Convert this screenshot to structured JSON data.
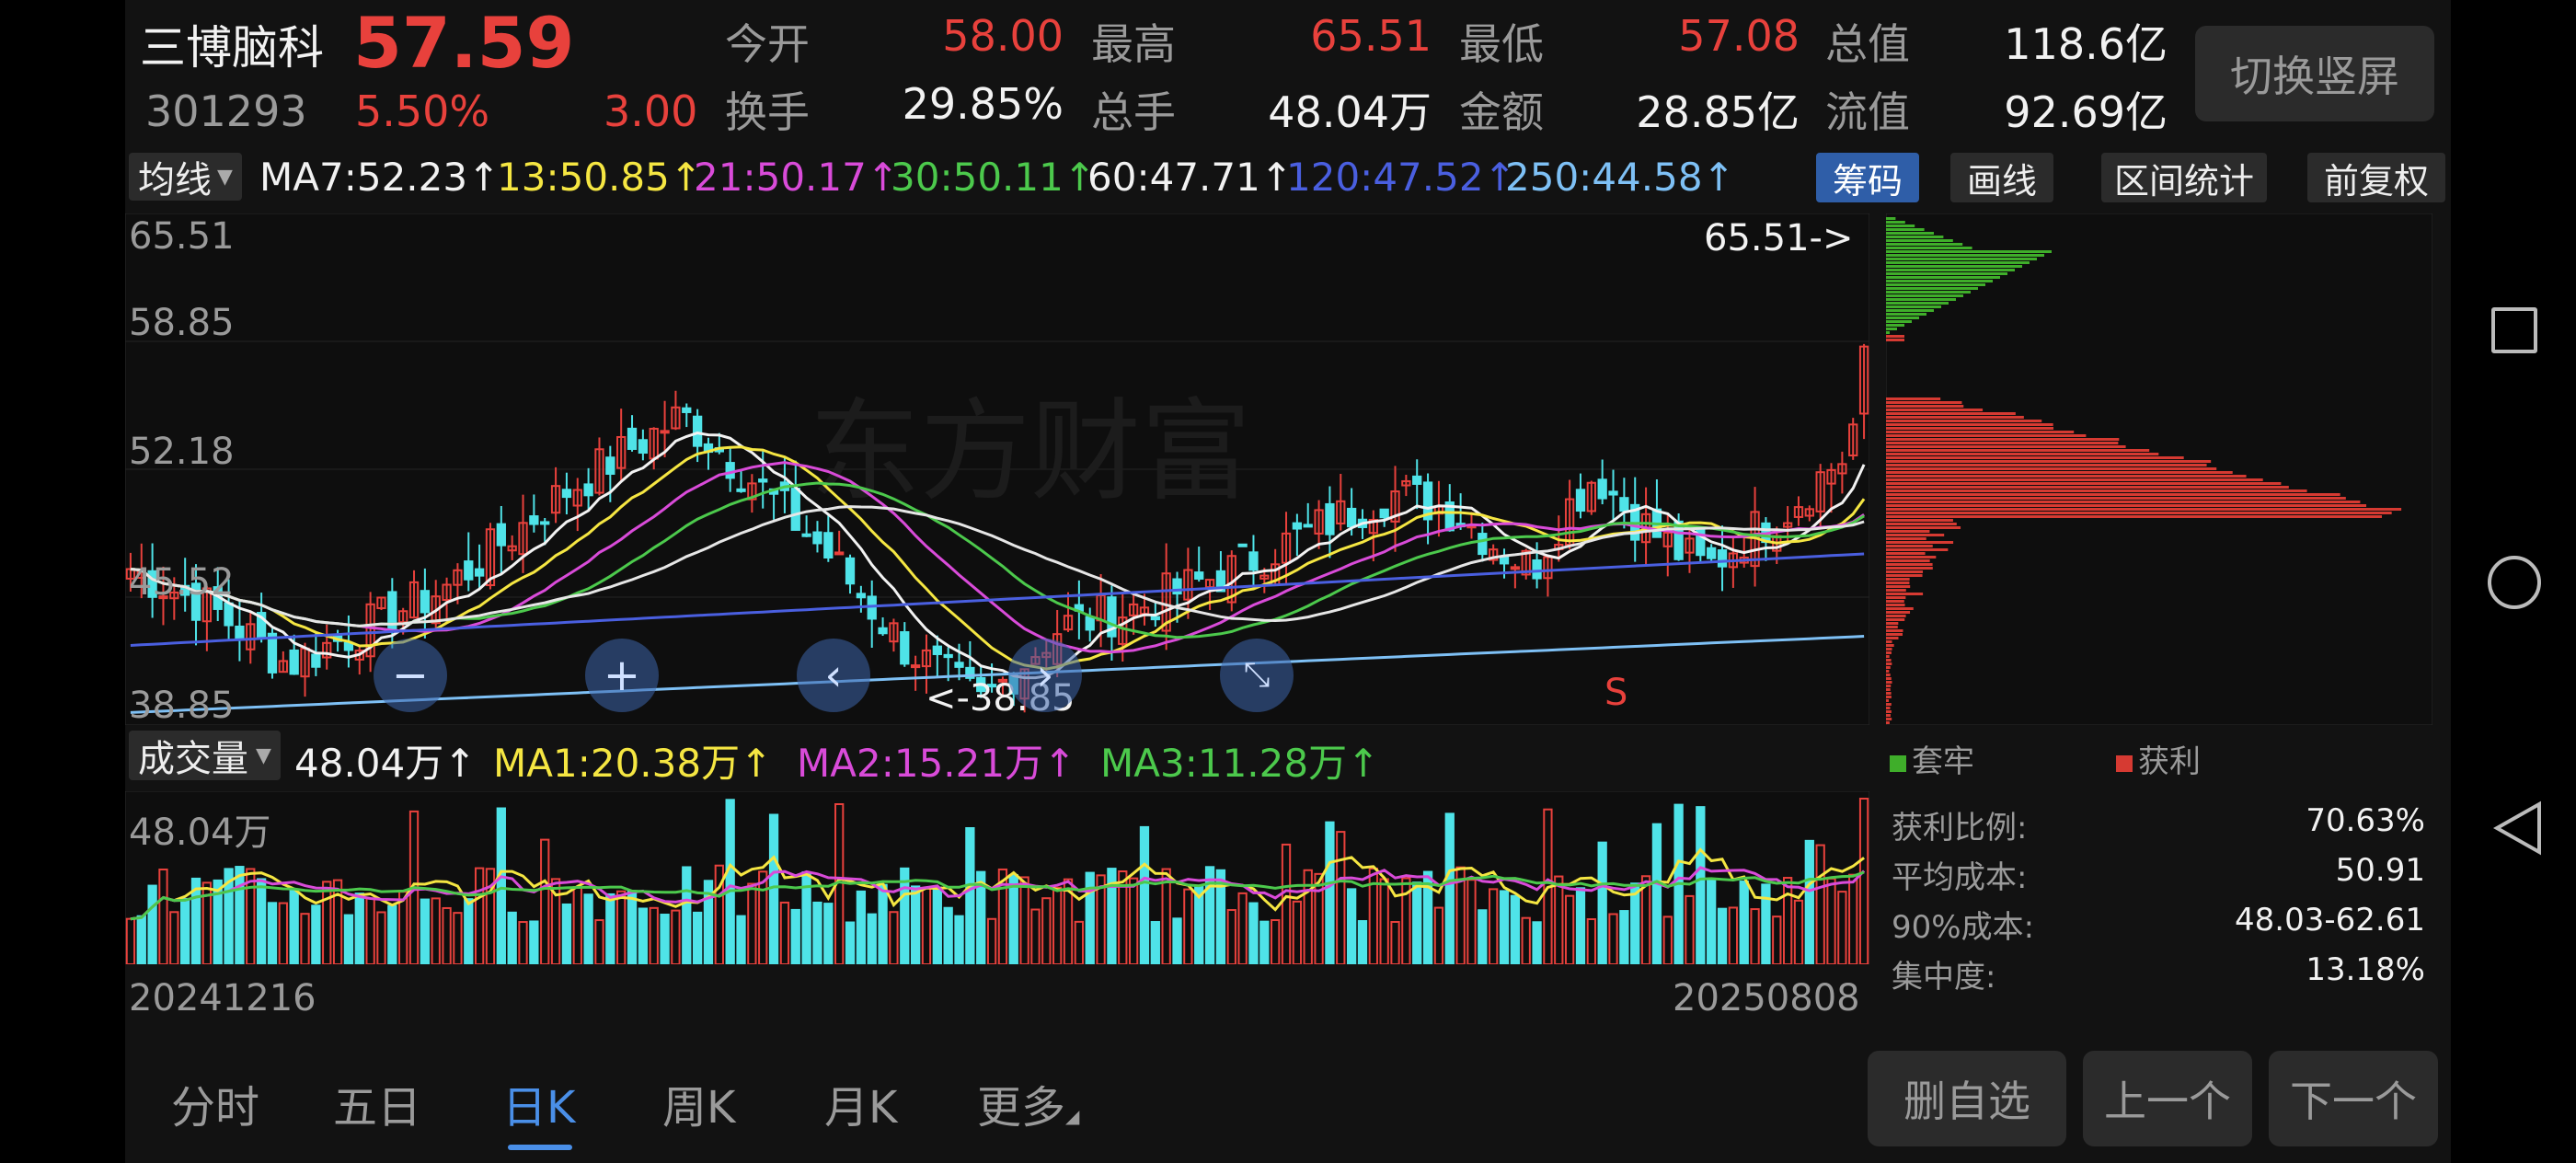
{
  "header": {
    "name": "三博脑科",
    "price": "57.59",
    "code": "301293",
    "pct_change": "5.50%",
    "change": "3.00",
    "stats": [
      {
        "label": "今开",
        "value": "58.00",
        "color": "red"
      },
      {
        "label": "最高",
        "value": "65.51",
        "color": "red"
      },
      {
        "label": "最低",
        "value": "57.08",
        "color": "red"
      },
      {
        "label": "总值",
        "value": "118.6亿",
        "color": "white"
      },
      {
        "label": "换手",
        "value": "29.85%",
        "color": "white"
      },
      {
        "label": "总手",
        "value": "48.04万",
        "color": "white"
      },
      {
        "label": "金额",
        "value": "28.85亿",
        "color": "white"
      },
      {
        "label": "流值",
        "value": "92.69亿",
        "color": "white"
      }
    ],
    "switch_button": "切换竖屏"
  },
  "ma_bar": {
    "tag": "均线",
    "items": [
      {
        "text": "MA7:52.23↑",
        "color": "#f2f2f2"
      },
      {
        "text": "13:50.85↑",
        "color": "#f5e642"
      },
      {
        "text": "21:50.17↑",
        "color": "#d94bd9"
      },
      {
        "text": "30:50.11↑",
        "color": "#4cc94c"
      },
      {
        "text": "60:47.71↑",
        "color": "#f2f2f2"
      },
      {
        "text": "120:47.52↑",
        "color": "#4a5fe0"
      },
      {
        "text": "250:44.58↑",
        "color": "#7ec0f5"
      }
    ],
    "tools": [
      "筹码",
      "画线",
      "区间统计",
      "前复权"
    ]
  },
  "kline": {
    "y_labels": [
      "65.51",
      "58.85",
      "52.18",
      "45.52",
      "38.85"
    ],
    "high_mark": "65.51->",
    "low_mark": "<-38.85",
    "signal": "S",
    "watermark": "东方财富"
  },
  "volume": {
    "tag": "成交量",
    "items": [
      {
        "text": "48.04万↑",
        "color": "#f2f2f2"
      },
      {
        "text": "MA1:20.38万↑",
        "color": "#f5e642"
      },
      {
        "text": "MA2:15.21万↑",
        "color": "#d94bd9"
      },
      {
        "text": "MA3:11.28万↑",
        "color": "#4cc94c"
      }
    ],
    "max_label": "48.04万",
    "start_date": "20241216",
    "end_date": "20250808"
  },
  "chips": {
    "legend": [
      {
        "label": "套牢",
        "color": "#3fae2a"
      },
      {
        "label": "获利",
        "color": "#d63a32"
      }
    ],
    "rows": [
      {
        "label": "获利比例:",
        "value": "70.63%"
      },
      {
        "label": "平均成本:",
        "value": "50.91"
      },
      {
        "label": "90%成本:",
        "value": "48.03-62.61"
      },
      {
        "label": "集中度:",
        "value": "13.18%"
      }
    ]
  },
  "tabs": [
    "分时",
    "五日",
    "日K",
    "周K",
    "月K",
    "更多"
  ],
  "active_tab": "日K",
  "actions": [
    "删自选",
    "上一个",
    "下一个"
  ]
}
